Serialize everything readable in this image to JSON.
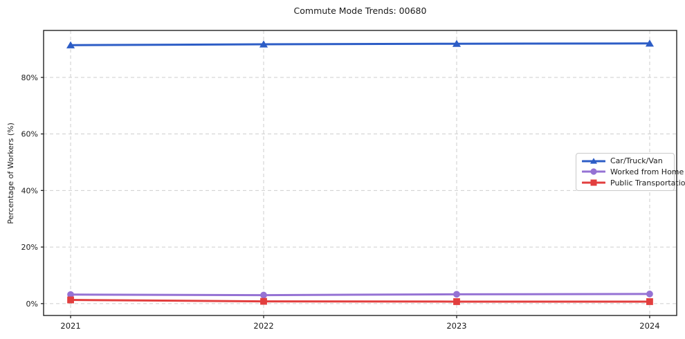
{
  "title": "Commute Mode Trends: 00680",
  "chart_data": {
    "type": "line",
    "title": "Commute Mode Trends: 00680",
    "xlabel": "",
    "ylabel": "Percentage of Workers (%)",
    "x": [
      2021,
      2022,
      2023,
      2024
    ],
    "xtick_labels": [
      "2021",
      "2022",
      "2023",
      "2024"
    ],
    "yticks": [
      0,
      20,
      40,
      60,
      80
    ],
    "ytick_labels": [
      "0%",
      "20%",
      "40%",
      "60%",
      "80%"
    ],
    "xlim": [
      2020.86,
      2024.14
    ],
    "ylim": [
      -4.2,
      96.6
    ],
    "grid": true,
    "grid_style": "dashed",
    "legend_position": "center-right",
    "series": [
      {
        "name": "Car/Truck/Van",
        "values": [
          91.4,
          91.7,
          91.9,
          92.0
        ],
        "color": "#2d5dc6",
        "marker": "triangle"
      },
      {
        "name": "Worked from Home",
        "values": [
          3.2,
          3.0,
          3.3,
          3.4
        ],
        "color": "#9572d4",
        "marker": "circle"
      },
      {
        "name": "Public Transportation",
        "values": [
          1.3,
          0.8,
          0.7,
          0.7
        ],
        "color": "#e23e3e",
        "marker": "square"
      }
    ],
    "colors": {
      "text": "#1a1a1a",
      "spine": "#222222",
      "grid": "#cdcdcd",
      "background": "#ffffff"
    }
  }
}
